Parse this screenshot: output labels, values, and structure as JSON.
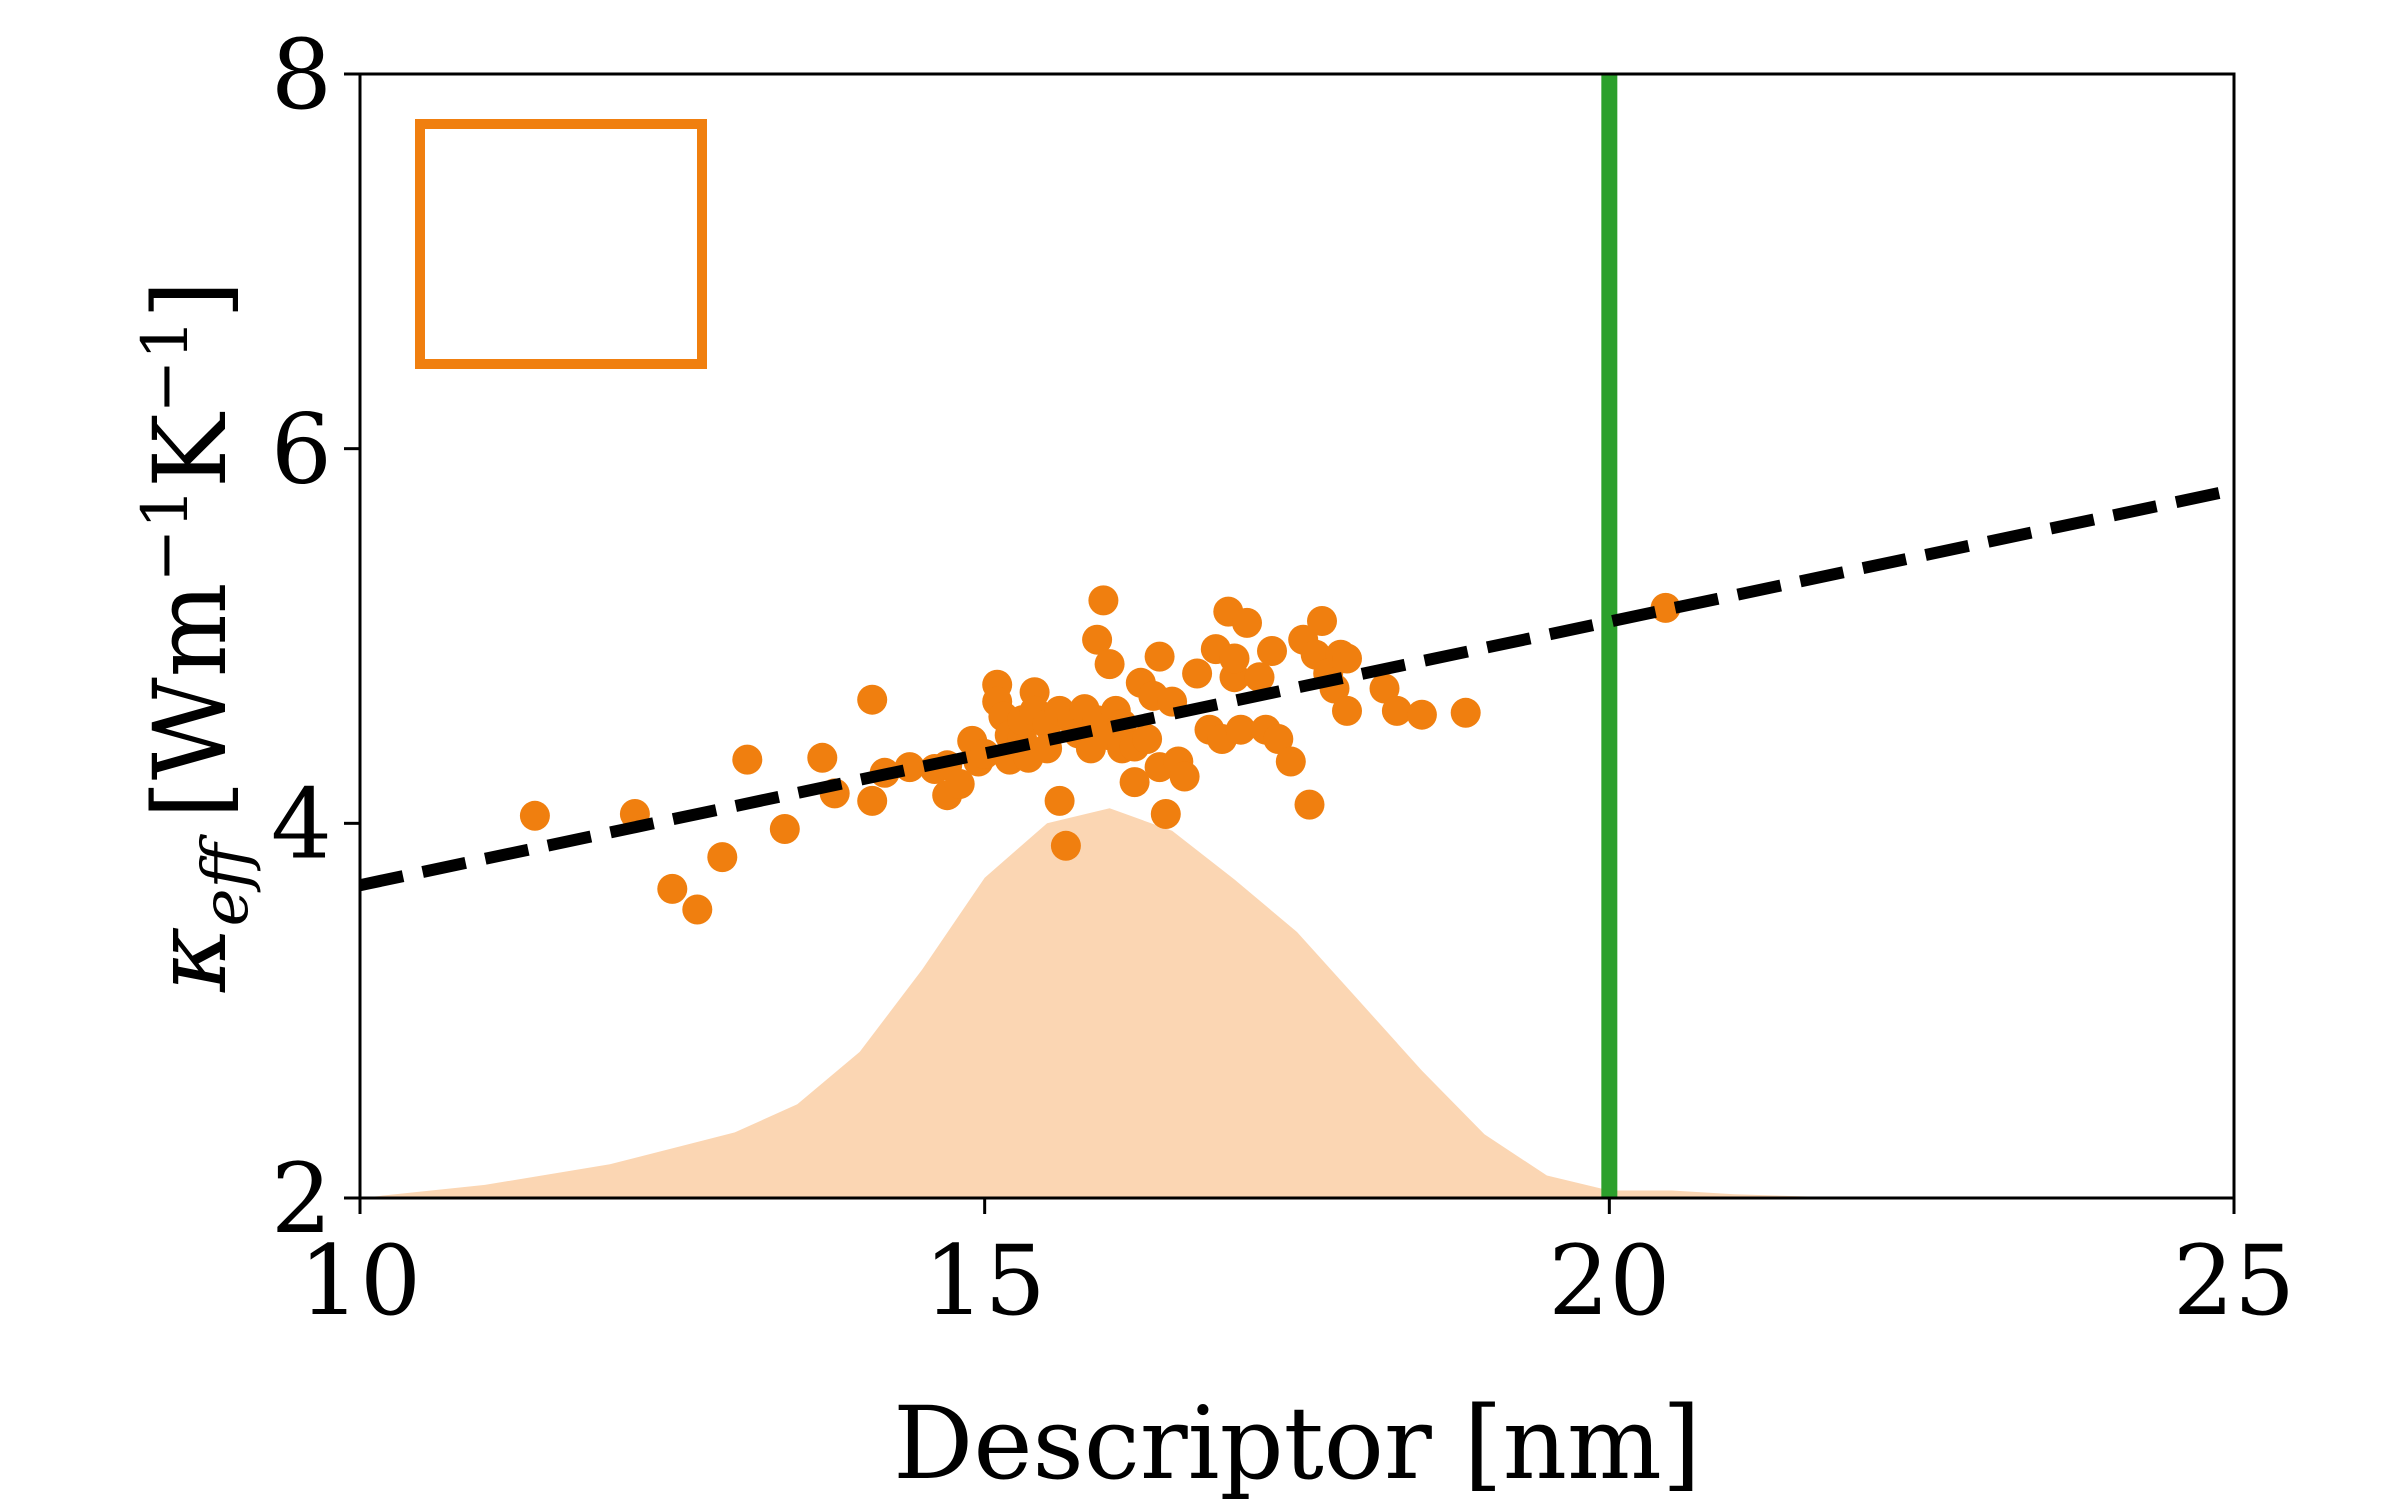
{
  "chart_data": {
    "type": "scatter",
    "xlabel": "Descriptor [nm]",
    "ylabel": {
      "symbol": "κ",
      "subscript": "eff",
      "unit_text": "[Wm",
      "unit_exp1": "−1",
      "unit_mid": "K",
      "unit_exp2": "−1",
      "unit_close": "]"
    },
    "xlim": [
      10,
      25
    ],
    "ylim": [
      2,
      8
    ],
    "xticks": [
      "10",
      "15",
      "20",
      "25"
    ],
    "yticks": [
      "2",
      "4",
      "6",
      "8"
    ],
    "grid": false,
    "colors": {
      "points": "#f07f0f",
      "fit_line": "#000000",
      "density_fill": "#fbd6b3",
      "vertical_line": "#2ca02c",
      "legend_box": "#f07f0f"
    },
    "fit_line": {
      "style": "dashed",
      "x": [
        10,
        25
      ],
      "y": [
        3.67,
        5.78
      ]
    },
    "vertical_line": {
      "x": 20.0
    },
    "density": {
      "x": [
        10,
        11,
        12,
        13,
        13.5,
        14,
        14.5,
        15,
        15.5,
        16,
        16.5,
        17,
        17.5,
        18,
        18.5,
        19,
        19.5,
        20,
        20.5,
        21,
        22,
        25
      ],
      "y": [
        2.0,
        2.07,
        2.18,
        2.35,
        2.5,
        2.78,
        3.22,
        3.71,
        4.0,
        4.08,
        3.96,
        3.7,
        3.42,
        3.05,
        2.68,
        2.34,
        2.12,
        2.04,
        2.04,
        2.02,
        2.0,
        2.0
      ]
    },
    "series": [
      {
        "x": [
          11.4,
          12.2,
          12.5,
          12.7,
          12.9,
          13.1,
          13.4,
          13.7,
          13.8,
          14.1,
          14.1,
          14.2,
          14.4,
          14.6,
          14.7,
          14.7,
          14.8,
          14.9,
          14.95,
          15.0,
          15.1,
          15.1,
          15.15,
          15.2,
          15.2,
          15.3,
          15.3,
          15.35,
          15.4,
          15.4,
          15.5,
          15.5,
          15.6,
          15.6,
          15.65,
          15.7,
          15.75,
          15.8,
          15.85,
          15.9,
          15.9,
          15.95,
          16.0,
          16.0,
          16.05,
          16.1,
          16.1,
          16.2,
          16.2,
          16.25,
          16.3,
          16.35,
          16.4,
          16.4,
          16.45,
          16.5,
          16.55,
          16.6,
          16.7,
          16.8,
          16.85,
          16.9,
          16.95,
          17.0,
          17.0,
          17.05,
          17.1,
          17.2,
          17.25,
          17.3,
          17.35,
          17.45,
          17.55,
          17.6,
          17.65,
          17.7,
          17.75,
          17.8,
          17.85,
          17.9,
          17.9,
          18.2,
          18.3,
          18.5,
          18.85,
          20.45
        ],
        "y": [
          4.04,
          4.05,
          3.65,
          3.54,
          3.82,
          4.34,
          3.97,
          4.35,
          4.16,
          4.12,
          4.66,
          4.27,
          4.3,
          4.29,
          4.15,
          4.31,
          4.21,
          4.44,
          4.33,
          4.37,
          4.74,
          4.65,
          4.57,
          4.47,
          4.34,
          4.45,
          4.55,
          4.35,
          4.7,
          4.6,
          4.53,
          4.4,
          4.6,
          4.12,
          3.88,
          4.55,
          4.48,
          4.61,
          4.4,
          4.98,
          4.55,
          5.19,
          4.85,
          4.47,
          4.6,
          4.4,
          4.53,
          4.41,
          4.22,
          4.75,
          4.45,
          4.68,
          4.89,
          4.3,
          4.05,
          4.65,
          4.33,
          4.25,
          4.8,
          4.5,
          4.93,
          4.45,
          5.13,
          4.78,
          4.88,
          4.5,
          5.07,
          4.78,
          4.5,
          4.92,
          4.45,
          4.33,
          4.98,
          4.1,
          4.9,
          5.08,
          4.8,
          4.72,
          4.9,
          4.88,
          4.6,
          4.72,
          4.6,
          4.58,
          4.59,
          5.15
        ]
      }
    ]
  }
}
